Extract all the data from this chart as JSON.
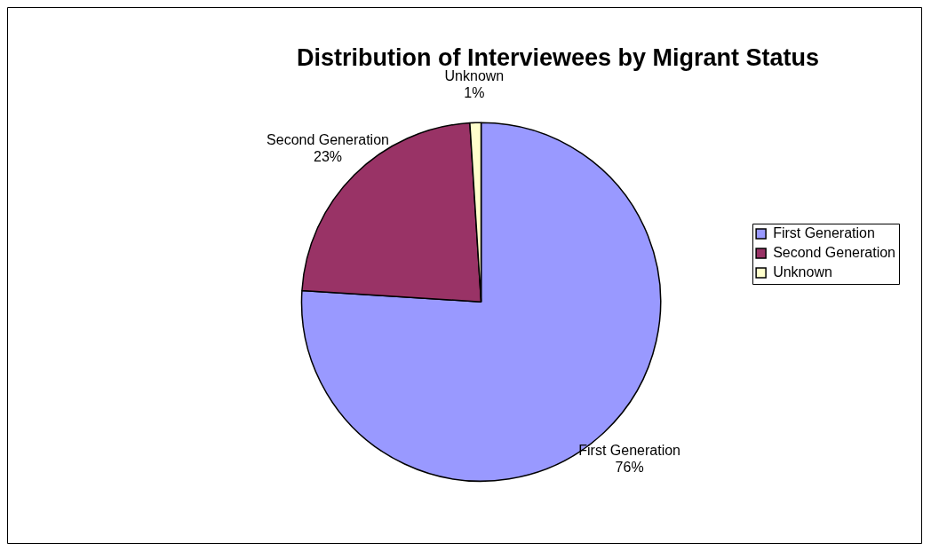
{
  "chart_data": {
    "type": "pie",
    "title": "Distribution of Interviewees by Migrant Status",
    "categories": [
      "First Generation",
      "Second Generation",
      "Unknown"
    ],
    "values": [
      76,
      23,
      1
    ],
    "value_labels": [
      "76%",
      "23%",
      "1%"
    ],
    "colors": [
      "#9999ff",
      "#993366",
      "#ffffcc"
    ],
    "legend": "right"
  }
}
